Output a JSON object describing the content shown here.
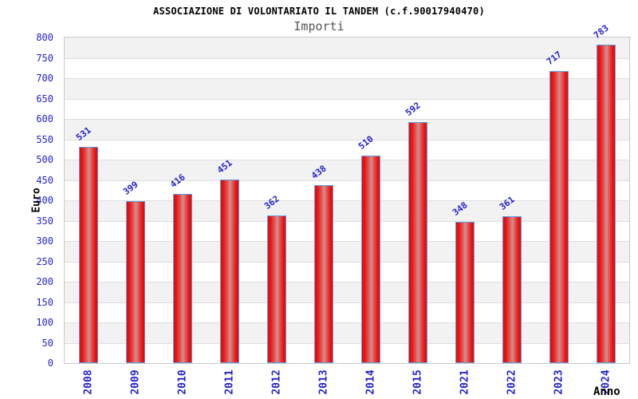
{
  "header": {
    "title": "ASSOCIAZIONE DI VOLONTARIATO IL TANDEM (c.f.90017940470)",
    "subtitle": "Importi"
  },
  "chart_data": {
    "type": "bar",
    "title": "ASSOCIAZIONE DI VOLONTARIATO IL TANDEM (c.f.90017940470)",
    "subtitle": "Importi",
    "xlabel": "Anno",
    "ylabel": "Euro",
    "categories": [
      "2008",
      "2009",
      "2010",
      "2011",
      "2012",
      "2013",
      "2014",
      "2015",
      "2021",
      "2022",
      "2023",
      "2024"
    ],
    "values": [
      531,
      399,
      416,
      451,
      362,
      438,
      510,
      592,
      348,
      361,
      717,
      783
    ],
    "ylim": [
      0,
      800
    ],
    "ytick_step": 50,
    "yticks": [
      0,
      50,
      100,
      150,
      200,
      250,
      300,
      350,
      400,
      450,
      500,
      550,
      600,
      650,
      700,
      750,
      800
    ],
    "grid": true,
    "legend": "none",
    "band_fill": "alternating horizontal 50-unit bands, gray on top band",
    "colors": {
      "bar_red": "#ec1212",
      "bar_highlight": "#cf9090",
      "bar_border": "#5e9fe0",
      "axis_text_blue": "#2222cd",
      "title_black": "#000000",
      "subtitle_gray": "#555555",
      "band_gray": "#f2f2f2",
      "gridline": "#dedede",
      "plot_border": "#c9c9c9"
    }
  }
}
